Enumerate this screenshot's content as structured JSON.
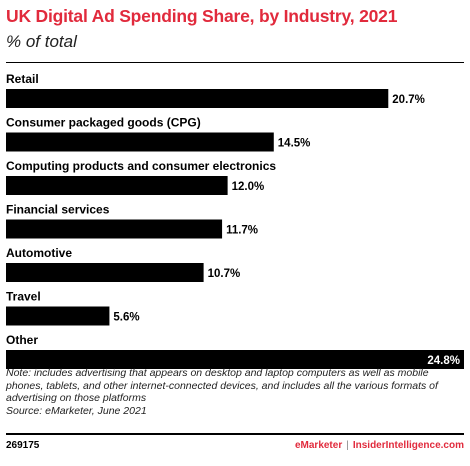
{
  "header": {
    "title": "UK Digital Ad Spending Share, by Industry, 2021",
    "subtitle": "% of total"
  },
  "chart_data": {
    "type": "bar",
    "orientation": "horizontal",
    "title": "UK Digital Ad Spending Share, by Industry, 2021",
    "subtitle": "% of total",
    "categories": [
      "Retail",
      "Consumer packaged goods (CPG)",
      "Computing products and consumer electronics",
      "Financial services",
      "Automotive",
      "Travel",
      "Other"
    ],
    "values": [
      20.7,
      14.5,
      12.0,
      11.7,
      10.7,
      5.6,
      24.8
    ],
    "value_labels": [
      "20.7%",
      "14.5%",
      "12.0%",
      "11.7%",
      "10.7%",
      "5.6%",
      "24.8%"
    ],
    "xlim": [
      0,
      24.8
    ],
    "bar_color": "#000000",
    "grid": false,
    "legend": "none"
  },
  "footer": {
    "note": "Note: includes advertising that appears on desktop and laptop computers as well as mobile phones, tablets, and other internet-connected devices, and includes all the various formats of advertising on those platforms",
    "source": "Source: eMarketer, June 2021",
    "chart_id": "269175",
    "brand_left": "eMarketer",
    "brand_sep": "|",
    "brand_right": "InsiderIntelligence.com"
  },
  "colors": {
    "accent": "#e12a3c",
    "bar": "#000000",
    "label_inside": "#ffffff"
  }
}
